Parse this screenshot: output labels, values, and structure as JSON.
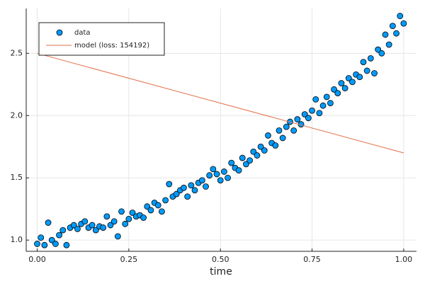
{
  "chart_data": {
    "type": "scatter",
    "xlabel": "time",
    "xlim": [
      -0.03,
      1.035
    ],
    "ylim": [
      0.91,
      2.86
    ],
    "xticks": [
      {
        "value": 0,
        "label": "0.00"
      },
      {
        "value": 0.25,
        "label": "0.25"
      },
      {
        "value": 0.5,
        "label": "0.50"
      },
      {
        "value": 0.75,
        "label": "0.75"
      },
      {
        "value": 1,
        "label": "1.00"
      }
    ],
    "yticks": [
      {
        "value": 1,
        "label": "1.0"
      },
      {
        "value": 1.5,
        "label": "1.5"
      },
      {
        "value": 2,
        "label": "2.0"
      },
      {
        "value": 2.5,
        "label": "2.5"
      }
    ],
    "grid": true,
    "legend": "top-left",
    "series": [
      {
        "name": "data",
        "type": "scatter",
        "color": "#009af9",
        "x": [
          0,
          0.01,
          0.02,
          0.03,
          0.04,
          0.05,
          0.06,
          0.07,
          0.08,
          0.09,
          0.1,
          0.11,
          0.12,
          0.13,
          0.14,
          0.15,
          0.16,
          0.17,
          0.18,
          0.19,
          0.2,
          0.21,
          0.22,
          0.23,
          0.24,
          0.25,
          0.26,
          0.27,
          0.28,
          0.29,
          0.3,
          0.31,
          0.32,
          0.33,
          0.34,
          0.35,
          0.36,
          0.37,
          0.38,
          0.39,
          0.4,
          0.41,
          0.42,
          0.43,
          0.44,
          0.45,
          0.46,
          0.47,
          0.48,
          0.49,
          0.5,
          0.51,
          0.52,
          0.53,
          0.54,
          0.55,
          0.56,
          0.57,
          0.58,
          0.59,
          0.6,
          0.61,
          0.62,
          0.63,
          0.64,
          0.65,
          0.66,
          0.67,
          0.68,
          0.69,
          0.7,
          0.71,
          0.72,
          0.73,
          0.74,
          0.75,
          0.76,
          0.77,
          0.78,
          0.79,
          0.8,
          0.81,
          0.82,
          0.83,
          0.84,
          0.85,
          0.86,
          0.87,
          0.88,
          0.89,
          0.9,
          0.91,
          0.92,
          0.93,
          0.94,
          0.95,
          0.96,
          0.97,
          0.98,
          0.99,
          1
        ],
        "values": [
          0.97,
          1.02,
          0.96,
          1.14,
          1.0,
          0.97,
          1.04,
          1.08,
          0.96,
          1.1,
          1.12,
          1.09,
          1.13,
          1.15,
          1.1,
          1.12,
          1.08,
          1.11,
          1.1,
          1.19,
          1.12,
          1.15,
          1.03,
          1.23,
          1.13,
          1.17,
          1.22,
          1.19,
          1.2,
          1.18,
          1.27,
          1.24,
          1.3,
          1.28,
          1.23,
          1.32,
          1.45,
          1.35,
          1.37,
          1.4,
          1.42,
          1.35,
          1.44,
          1.4,
          1.46,
          1.48,
          1.43,
          1.52,
          1.57,
          1.53,
          1.48,
          1.55,
          1.5,
          1.62,
          1.58,
          1.56,
          1.66,
          1.61,
          1.64,
          1.71,
          1.68,
          1.75,
          1.72,
          1.84,
          1.78,
          1.76,
          1.88,
          1.82,
          1.91,
          1.95,
          1.88,
          1.97,
          1.93,
          2.01,
          1.98,
          2.04,
          2.13,
          2.02,
          2.08,
          2.15,
          2.1,
          2.21,
          2.18,
          2.26,
          2.22,
          2.3,
          2.27,
          2.33,
          2.31,
          2.43,
          2.36,
          2.46,
          2.34,
          2.53,
          2.5,
          2.65,
          2.57,
          2.72,
          2.66,
          2.8,
          2.74
        ]
      },
      {
        "name": "model (loss: 154192)",
        "type": "line",
        "color": "#e26f46",
        "x": [
          0,
          1
        ],
        "values": [
          2.5,
          1.7
        ]
      }
    ]
  }
}
